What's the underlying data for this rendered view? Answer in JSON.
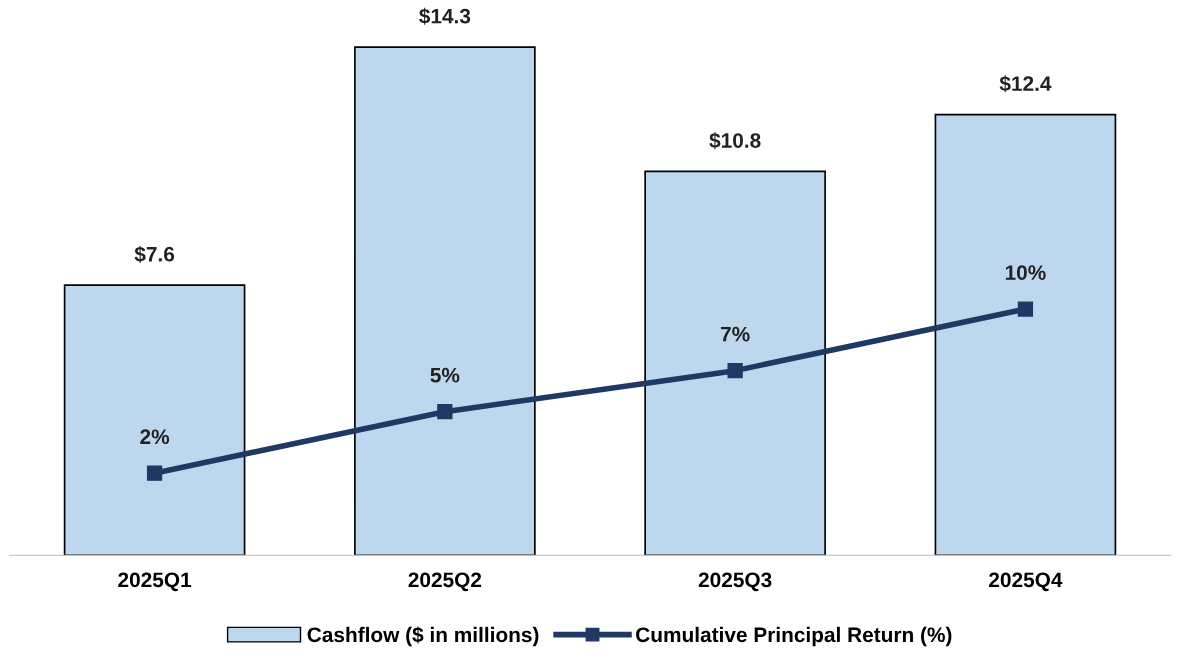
{
  "chart_data": {
    "type": "bar",
    "categories": [
      "2025Q1",
      "2025Q2",
      "2025Q3",
      "2025Q4"
    ],
    "series": [
      {
        "name": "Cashflow ($ in millions)",
        "color": "#bdd7ee",
        "values": [
          7.6,
          14.3,
          10.8,
          12.4
        ],
        "value_labels": [
          "$7.6",
          "$14.3",
          "$10.8",
          "$12.4"
        ]
      },
      {
        "name": "Cumulative Principal Return (%)",
        "type": "line",
        "axis": "y2",
        "color": "#1f3864",
        "values": [
          2,
          5,
          7,
          10
        ],
        "value_labels": [
          "2%",
          "5%",
          "7%",
          "10%"
        ]
      }
    ],
    "tick_labels": "x",
    "grid": false,
    "legend": "bottom",
    "marker": "square",
    "line_style": "solid"
  }
}
